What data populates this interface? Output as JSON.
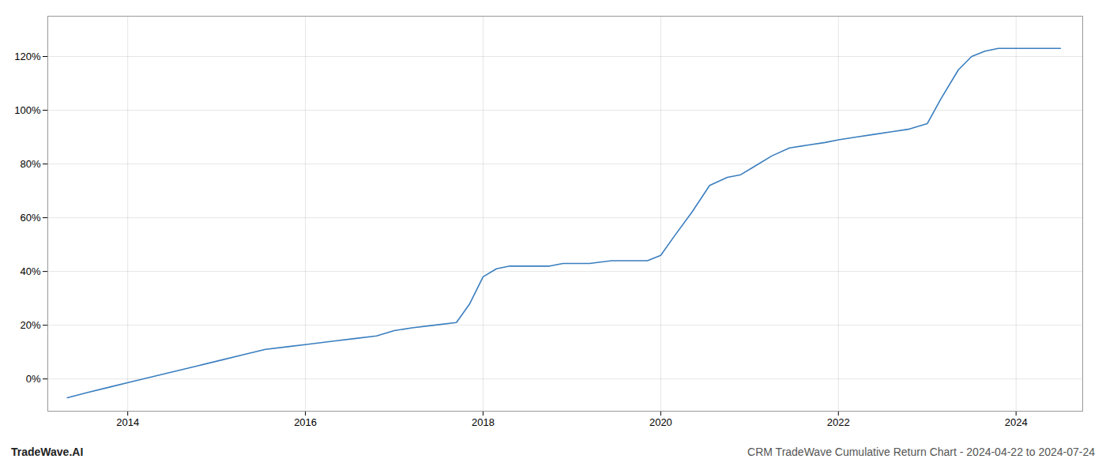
{
  "chart_data": {
    "type": "line",
    "x": [
      2013.32,
      2013.55,
      2013.8,
      2014.05,
      2014.3,
      2014.55,
      2014.8,
      2015.05,
      2015.3,
      2015.55,
      2015.8,
      2016.05,
      2016.3,
      2016.55,
      2016.8,
      2017.0,
      2017.2,
      2017.45,
      2017.7,
      2017.85,
      2018.0,
      2018.15,
      2018.3,
      2018.55,
      2018.75,
      2018.9,
      2019.05,
      2019.2,
      2019.45,
      2019.65,
      2019.85,
      2020.0,
      2020.15,
      2020.35,
      2020.55,
      2020.75,
      2020.9,
      2021.05,
      2021.25,
      2021.45,
      2021.65,
      2021.85,
      2022.0,
      2022.2,
      2022.4,
      2022.6,
      2022.8,
      2023.0,
      2023.15,
      2023.35,
      2023.5,
      2023.65,
      2023.8,
      2024.0,
      2024.2,
      2024.5
    ],
    "values": [
      -7,
      -5,
      -3,
      -1,
      1,
      3,
      5,
      7,
      9,
      11,
      12,
      13,
      14,
      15,
      16,
      18,
      19,
      20,
      21,
      28,
      38,
      41,
      42,
      42,
      42,
      43,
      43,
      43,
      44,
      44,
      44,
      46,
      53,
      62,
      72,
      75,
      76,
      79,
      83,
      86,
      87,
      88,
      89,
      90,
      91,
      92,
      93,
      95,
      104,
      115,
      120,
      122,
      123,
      123,
      123,
      123
    ],
    "color": "#3a7ebf",
    "xlim": [
      2013.1,
      2024.75
    ],
    "xticks": [
      2014,
      2016,
      2018,
      2020,
      2022,
      2024
    ],
    "ylim": [
      -12,
      135
    ],
    "yticks": [
      {
        "value": 0,
        "label": "0%"
      },
      {
        "value": 20,
        "label": "20%"
      },
      {
        "value": 40,
        "label": "40%"
      },
      {
        "value": 60,
        "label": "60%"
      },
      {
        "value": 80,
        "label": "80%"
      },
      {
        "value": 100,
        "label": "100%"
      },
      {
        "value": 120,
        "label": "120%"
      }
    ],
    "grid": true,
    "annotations": [
      "TradeWave.AI",
      "CRM TradeWave Cumulative Return Chart - 2024-04-22 to 2024-07-24"
    ]
  }
}
